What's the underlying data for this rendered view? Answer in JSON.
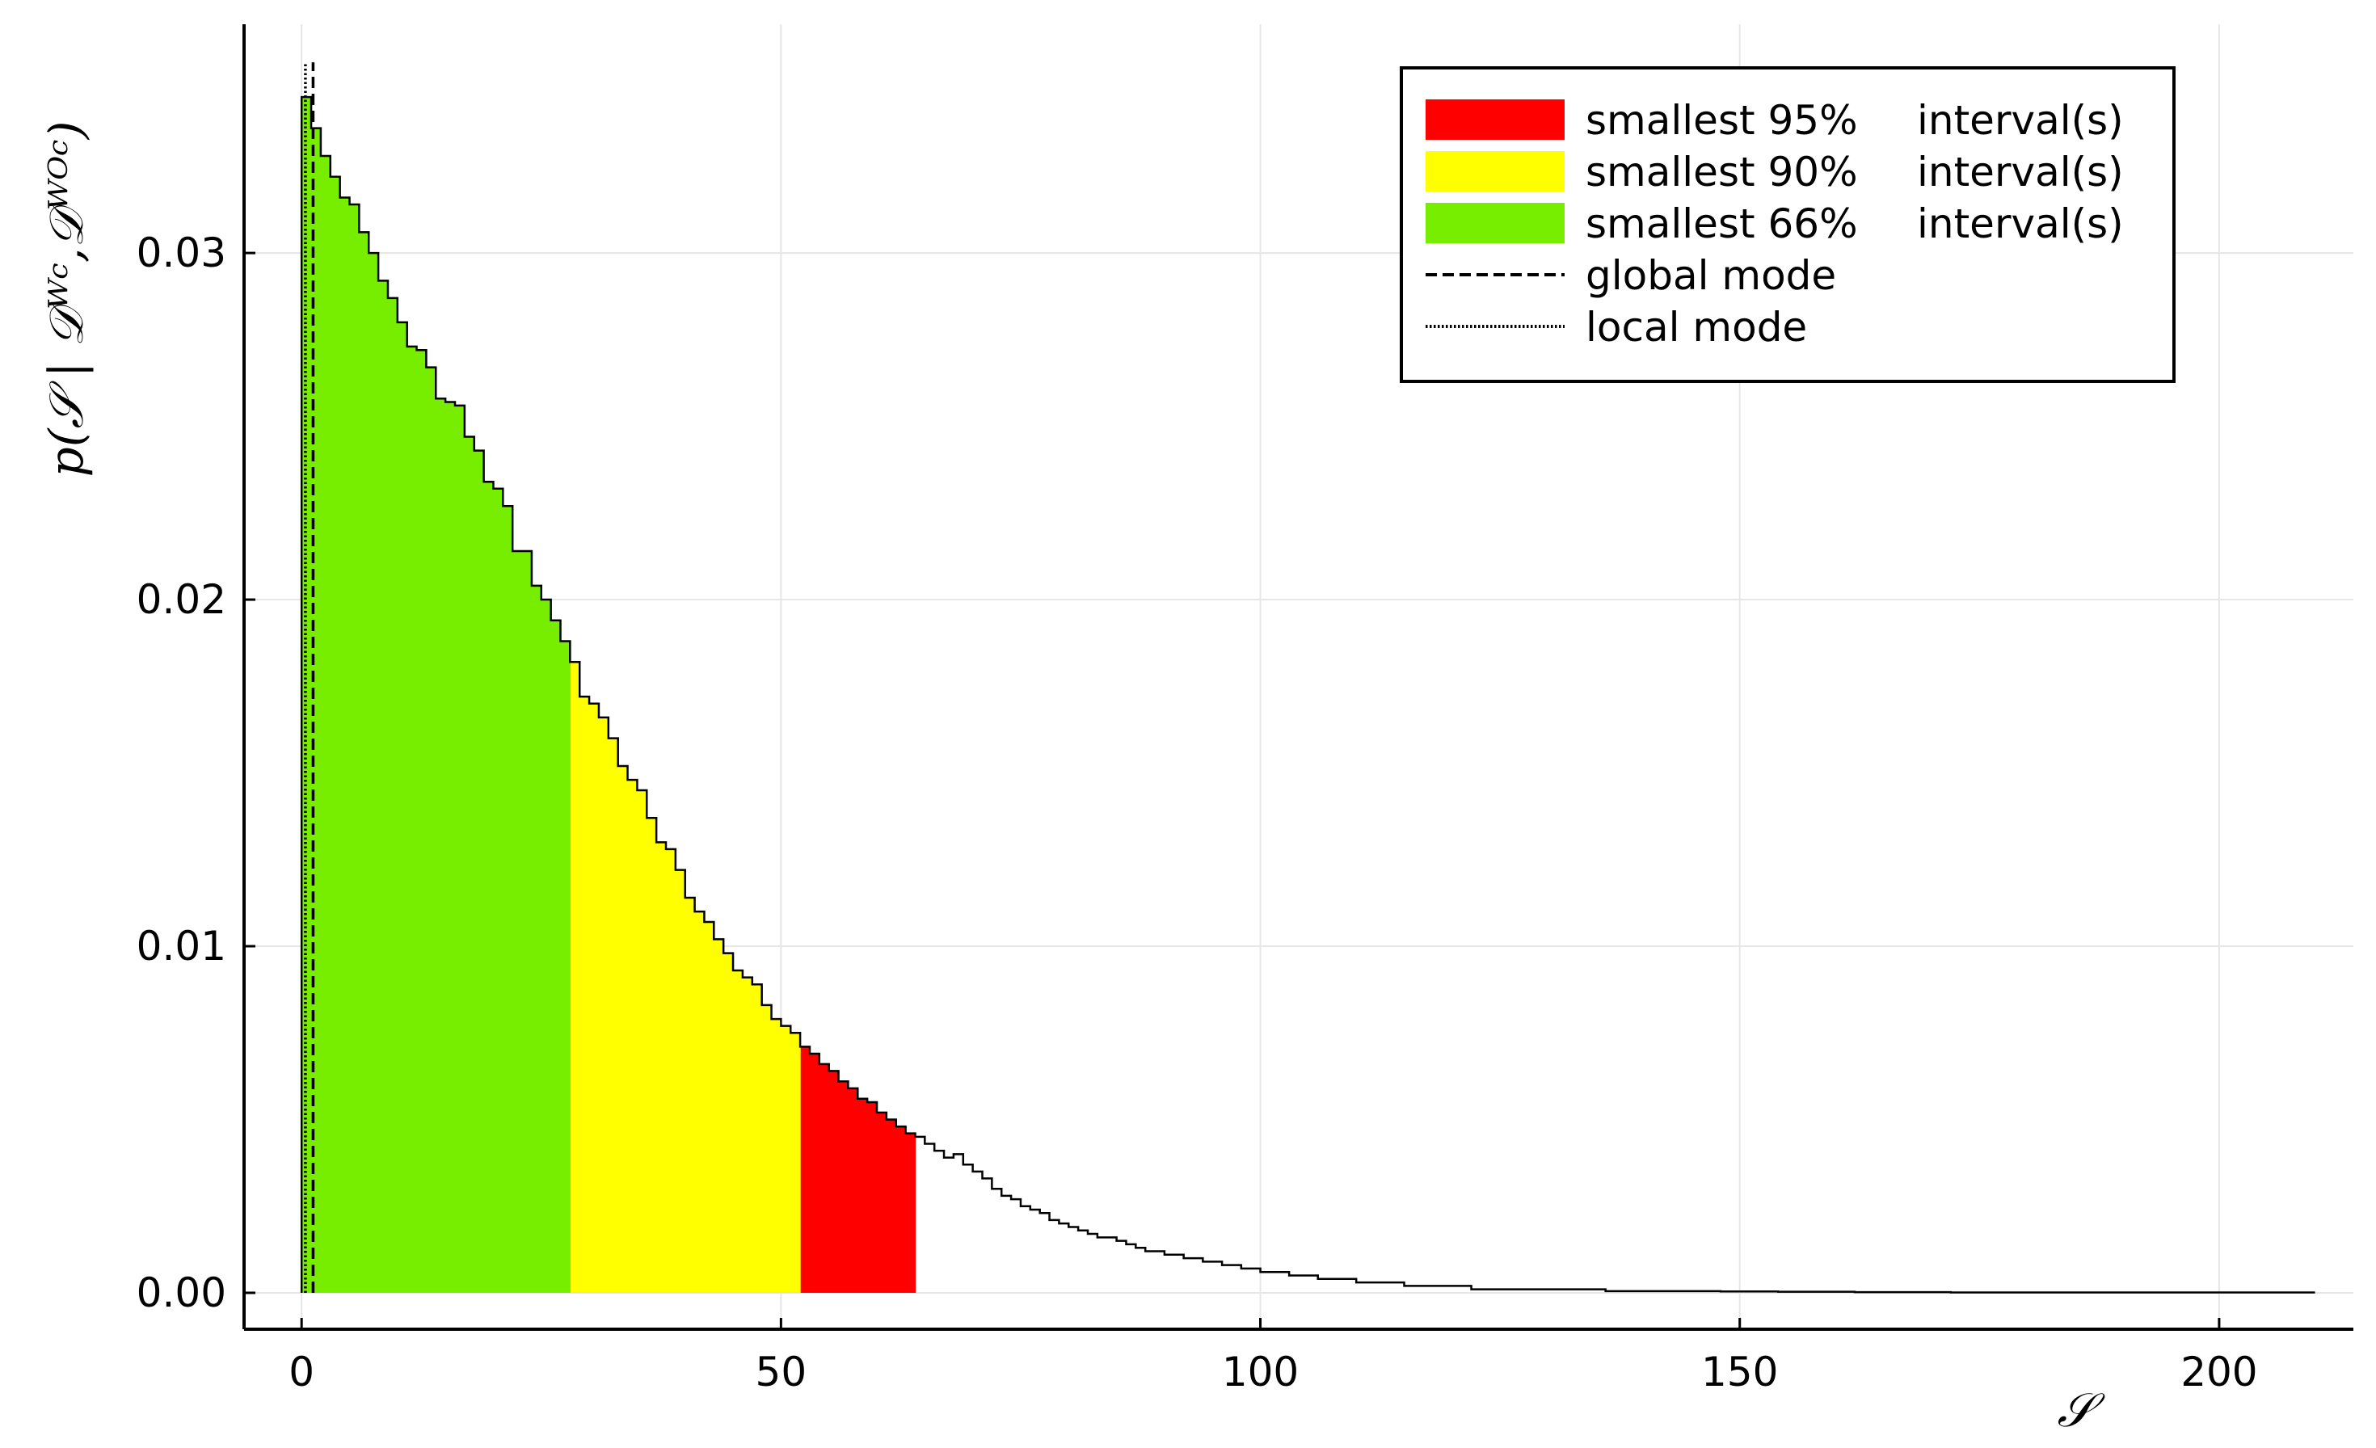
{
  "chart_data": {
    "type": "histogram",
    "xlabel": "𝒮",
    "ylabel": "p(𝒮 | 𝒟ᵂᶜ,𝒟ᵂᴼᶜ)",
    "xlim": [
      -6,
      214
    ],
    "ylim": [
      -0.00105,
      0.0366
    ],
    "x_ticks": [
      0,
      50,
      100,
      150,
      200
    ],
    "x_tick_labels": [
      "0",
      "50",
      "100",
      "150",
      "200"
    ],
    "y_ticks": [
      0.0,
      0.01,
      0.02,
      0.03
    ],
    "y_tick_labels": [
      "0.00",
      "0.01",
      "0.02",
      "0.03"
    ],
    "grid": true,
    "bin_width": 1,
    "bin_start": 0,
    "values": [
      0.0345,
      0.0336,
      0.0328,
      0.0322,
      0.0316,
      0.0314,
      0.0306,
      0.03,
      0.0292,
      0.0287,
      0.028,
      0.0273,
      0.0272,
      0.0267,
      0.0258,
      0.0257,
      0.0256,
      0.0247,
      0.0243,
      0.0234,
      0.0232,
      0.0227,
      0.0214,
      0.0214,
      0.0204,
      0.02,
      0.0194,
      0.0188,
      0.0182,
      0.0172,
      0.017,
      0.0166,
      0.016,
      0.0152,
      0.0148,
      0.0145,
      0.0137,
      0.013,
      0.0128,
      0.0122,
      0.0114,
      0.011,
      0.0107,
      0.0102,
      0.0098,
      0.0093,
      0.0091,
      0.0089,
      0.0083,
      0.0079,
      0.0077,
      0.0075,
      0.0071,
      0.0069,
      0.0066,
      0.0064,
      0.0061,
      0.0059,
      0.0056,
      0.0055,
      0.0052,
      0.005,
      0.0048,
      0.0046,
      0.0045,
      0.0043,
      0.0041,
      0.0039,
      0.004,
      0.0037,
      0.0035,
      0.0033,
      0.003,
      0.0028,
      0.0027,
      0.0025,
      0.0024,
      0.0023,
      0.0021,
      0.002,
      0.0019,
      0.0018,
      0.0017,
      0.0016,
      0.0016,
      0.0015,
      0.0014,
      0.0013,
      0.0012,
      0.0012,
      0.0011,
      0.0011,
      0.001,
      0.001,
      0.0009,
      0.0009,
      0.0008,
      0.0008,
      0.0007,
      0.0007,
      0.0006,
      0.0006,
      0.0006,
      0.0005,
      0.0005,
      0.0005,
      0.0004,
      0.0004,
      0.0004,
      0.0004,
      0.0003,
      0.0003,
      0.0003,
      0.0003,
      0.0003,
      0.0002,
      0.0002,
      0.0002,
      0.0002,
      0.0002,
      0.0002,
      0.0002,
      0.0001,
      0.0001,
      0.0001,
      0.0001,
      0.0001,
      0.0001,
      0.0001,
      0.0001,
      0.0001,
      0.0001,
      0.0001,
      0.0001,
      0.0001,
      0.0001,
      5e-05,
      5e-05,
      5e-05,
      5e-05,
      5e-05,
      5e-05,
      5e-05,
      5e-05,
      5e-05,
      5e-05,
      5e-05,
      5e-05,
      4e-05,
      4e-05,
      4e-05,
      4e-05,
      4e-05,
      4e-05,
      3e-05,
      3e-05,
      3e-05,
      3e-05,
      3e-05,
      3e-05,
      3e-05,
      3e-05,
      2e-05,
      2e-05,
      2e-05,
      2e-05,
      2e-05,
      2e-05,
      2e-05,
      2e-05,
      2e-05,
      2e-05,
      1e-05,
      1e-05,
      1e-05,
      1e-05,
      1e-05,
      1e-05,
      1e-05,
      1e-05,
      1e-05,
      1e-05,
      1e-05,
      1e-05,
      1e-05,
      1e-05,
      1e-05,
      1e-05,
      1e-05,
      1e-05,
      1e-05,
      1e-05,
      1e-05,
      1e-05,
      1e-05,
      1e-05,
      1e-05,
      1e-05,
      1e-05,
      1e-05,
      1e-05,
      1e-05,
      1e-05,
      1e-05,
      1e-05,
      1e-05,
      1e-05,
      1e-05,
      1e-05,
      1e-05
    ],
    "intervals": [
      {
        "label": "smallest 95% interval(s)",
        "color": "#ff0000",
        "range": [
          0,
          64
        ]
      },
      {
        "label": "smallest 90% interval(s)",
        "color": "#ffff00",
        "range": [
          0,
          52
        ]
      },
      {
        "label": "smallest 66% interval(s)",
        "color": "#77ee00",
        "range": [
          0,
          28
        ]
      }
    ],
    "modes": [
      {
        "label": "global mode",
        "x": 1.2,
        "style": "dashed"
      },
      {
        "label": "local mode",
        "x": 0.4,
        "style": "dotted"
      }
    ],
    "legend": {
      "position": "top-right",
      "entries": [
        {
          "text": "smallest 95%",
          "suffix": "interval(s)",
          "color": "#ff0000",
          "kind": "patch"
        },
        {
          "text": "smallest 90%",
          "suffix": "interval(s)",
          "color": "#ffff00",
          "kind": "patch"
        },
        {
          "text": "smallest 66%",
          "suffix": "interval(s)",
          "color": "#77ee00",
          "kind": "patch"
        },
        {
          "text": "global mode",
          "suffix": "",
          "color": "#000000",
          "kind": "dashed"
        },
        {
          "text": "local mode",
          "suffix": "",
          "color": "#000000",
          "kind": "dotted"
        }
      ]
    }
  }
}
